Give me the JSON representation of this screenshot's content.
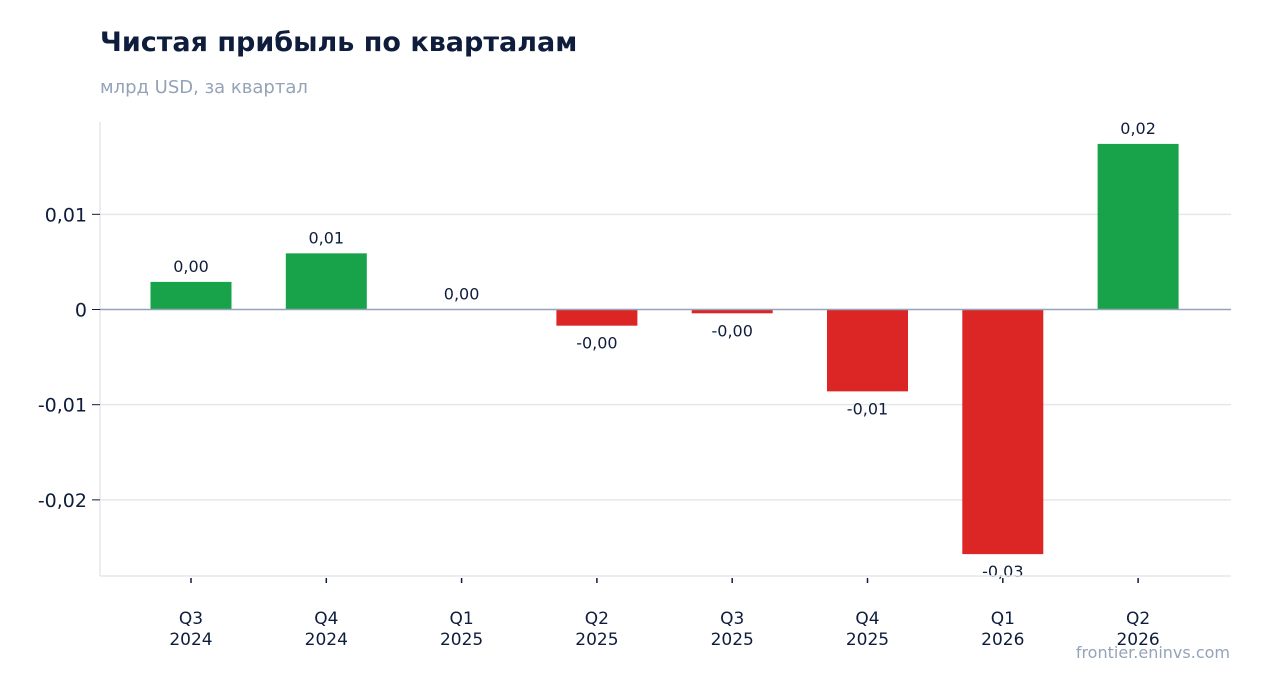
{
  "title": "Чистая прибыль по кварталам",
  "subtitle": "млрд USD, за квартал",
  "source": "frontier.eninvs.com",
  "colors": {
    "positive": "#18a34a",
    "negative": "#dc2626",
    "grid": "#e5e7eb",
    "zero_line": "#94a3b8",
    "axis": "#e5e7eb",
    "text": "#0f1d3d",
    "muted": "#94a3b8"
  },
  "chart_data": {
    "type": "bar",
    "categories": [
      "Q3\n2024",
      "Q4\n2024",
      "Q1\n2025",
      "Q2\n2025",
      "Q3\n2025",
      "Q4\n2025",
      "Q1\n2026",
      "Q2\n2026"
    ],
    "values": [
      0.0029,
      0.0059,
      0.0,
      -0.0017,
      -0.0004,
      -0.0086,
      -0.0257,
      0.0174
    ],
    "data_labels": [
      "0,00",
      "0,01",
      "0,00",
      "-0,00",
      "-0,00",
      "-0,01",
      "-0,03",
      "0,02"
    ],
    "yticks": [
      0.01,
      0,
      -0.01,
      -0.02
    ],
    "ytick_labels": [
      "0,01",
      "0",
      "-0,01",
      "-0,02"
    ],
    "ylim": [
      -0.028,
      0.0197
    ],
    "grid": true,
    "legend": false
  }
}
